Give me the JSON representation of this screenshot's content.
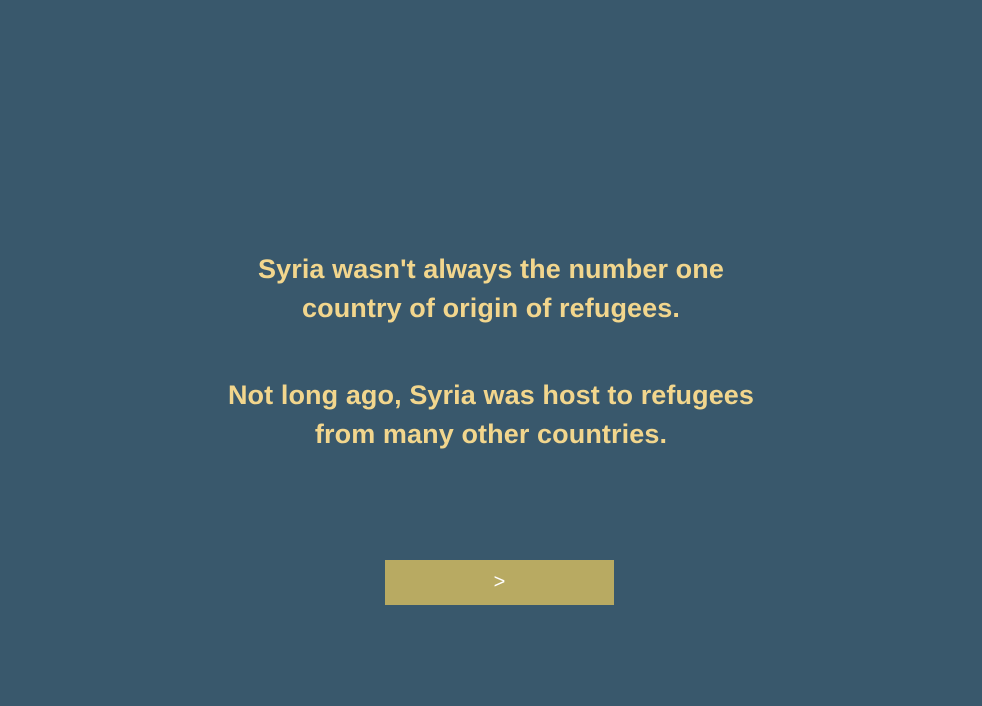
{
  "slide": {
    "paragraph_1": {
      "line_1": "Syria wasn't always the number one",
      "line_2": "country of origin of refugees."
    },
    "paragraph_2": {
      "line_1": "Not long ago, Syria was host to refugees",
      "line_2": "from many other countries."
    },
    "next_button_label": ">"
  },
  "colors": {
    "background": "#39586c",
    "text": "#f2d68d",
    "button": "#b8aa62",
    "button_text": "#ffffff"
  }
}
